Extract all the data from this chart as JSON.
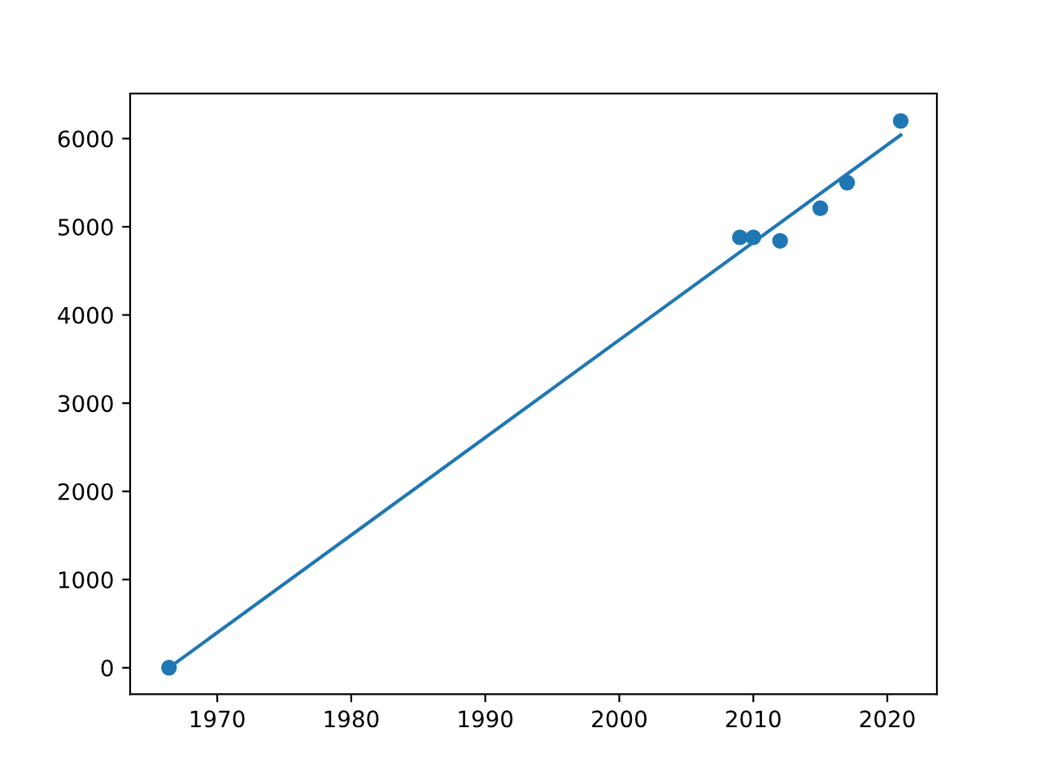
{
  "chart_data": {
    "type": "scatter",
    "series": [
      {
        "color": "#1f77b4",
        "marker": "circle",
        "x": [
          1966.4,
          2009,
          2010,
          2012,
          2015,
          2017,
          2021
        ],
        "values": [
          0,
          4880,
          4880,
          4840,
          5210,
          5500,
          6200
        ]
      },
      {
        "type": "line",
        "color": "#1f77b4",
        "line_style": "solid",
        "marker": "none",
        "x": [
          1966.4,
          2021
        ],
        "values": [
          0,
          6040
        ]
      }
    ],
    "xlim": [
      1963.5,
      2023.7
    ],
    "ylim": [
      -300,
      6510
    ],
    "xticks": [
      1970,
      1980,
      1990,
      2000,
      2010,
      2020
    ],
    "yticks": [
      0,
      1000,
      2000,
      3000,
      4000,
      5000,
      6000
    ],
    "grid": false
  }
}
